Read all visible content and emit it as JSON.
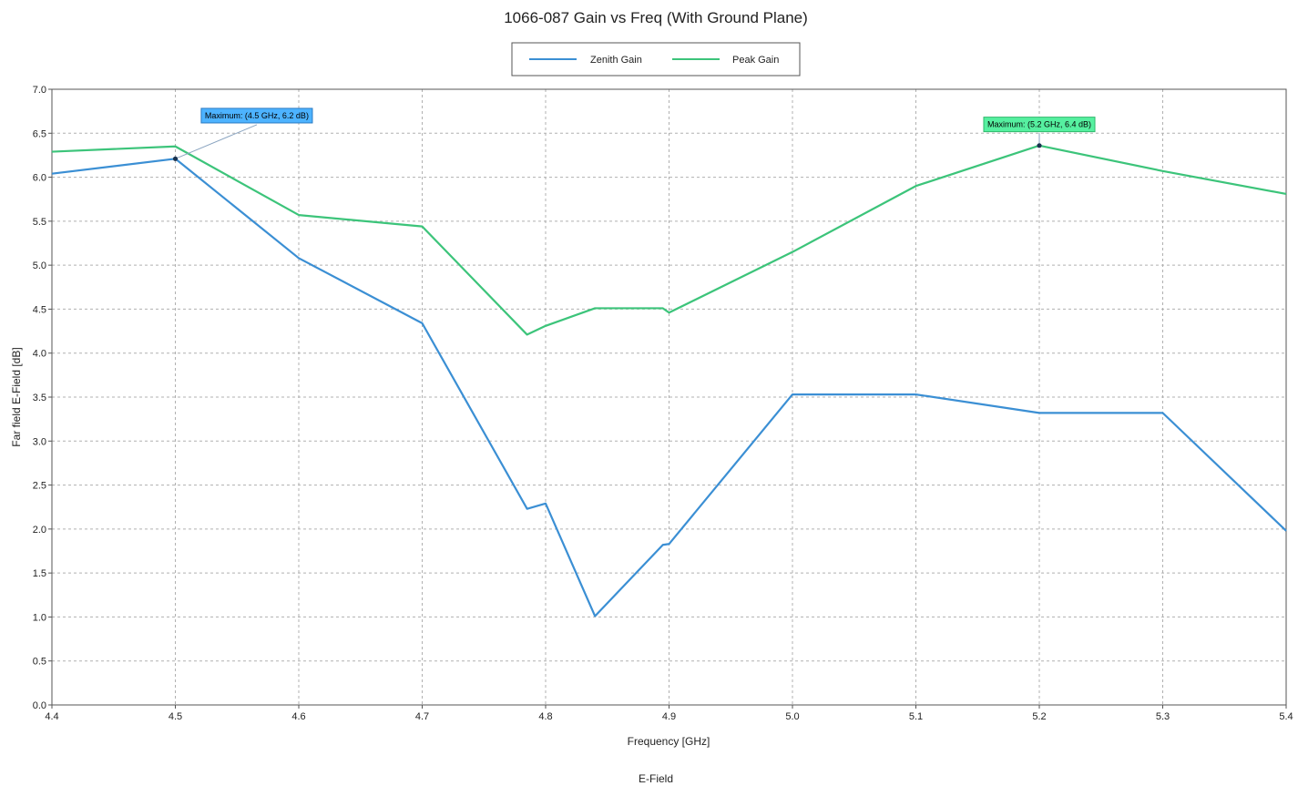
{
  "chart_data": {
    "type": "line",
    "title": "1066-087 Gain vs Freq (With Ground Plane)",
    "xlabel": "Frequency [GHz]",
    "ylabel": "Far field E-Field [dB]",
    "footer": "E-Field",
    "xlim": [
      4.4,
      5.4
    ],
    "ylim": [
      0.0,
      7.0
    ],
    "x_ticks": [
      4.4,
      4.5,
      4.6,
      4.7,
      4.8,
      4.9,
      5.0,
      5.1,
      5.2,
      5.3,
      5.4
    ],
    "x_tick_labels": [
      "4.4",
      "4.5",
      "4.6",
      "4.7",
      "4.8",
      "4.9",
      "5.0",
      "5.1",
      "5.2",
      "5.3",
      "5.4"
    ],
    "y_ticks": [
      0.0,
      0.5,
      1.0,
      1.5,
      2.0,
      2.5,
      3.0,
      3.5,
      4.0,
      4.5,
      5.0,
      5.5,
      6.0,
      6.5,
      7.0
    ],
    "y_tick_labels": [
      "0.0",
      "0.5",
      "1.0",
      "1.5",
      "2.0",
      "2.5",
      "3.0",
      "3.5",
      "4.0",
      "4.5",
      "5.0",
      "5.5",
      "6.0",
      "6.5",
      "7.0"
    ],
    "grid": true,
    "legend_position": "top-center",
    "series": [
      {
        "name": "Zenith Gain",
        "color": "#3b8fd4",
        "points": [
          [
            4.4,
            6.04
          ],
          [
            4.5,
            6.21
          ],
          [
            4.6,
            5.08
          ],
          [
            4.7,
            4.34
          ],
          [
            4.785,
            2.23
          ],
          [
            4.8,
            2.29
          ],
          [
            4.84,
            1.01
          ],
          [
            4.895,
            1.82
          ],
          [
            4.9,
            1.83
          ],
          [
            5.0,
            3.53
          ],
          [
            5.1,
            3.53
          ],
          [
            5.2,
            3.32
          ],
          [
            5.3,
            3.32
          ],
          [
            5.4,
            1.98
          ]
        ]
      },
      {
        "name": "Peak Gain",
        "color": "#3cc47a",
        "points": [
          [
            4.4,
            6.29
          ],
          [
            4.5,
            6.35
          ],
          [
            4.6,
            5.57
          ],
          [
            4.7,
            5.44
          ],
          [
            4.785,
            4.21
          ],
          [
            4.8,
            4.31
          ],
          [
            4.84,
            4.51
          ],
          [
            4.895,
            4.51
          ],
          [
            4.9,
            4.46
          ],
          [
            5.0,
            5.15
          ],
          [
            5.1,
            5.9
          ],
          [
            5.2,
            6.36
          ],
          [
            5.3,
            6.07
          ],
          [
            5.4,
            5.81
          ]
        ]
      }
    ],
    "annotations": [
      {
        "text": "Maximum: (4.5 GHz, 6.2 dB)",
        "x": 4.5,
        "y": 6.21,
        "label_x": 4.566,
        "label_y": 6.7,
        "color": "#4db3ff",
        "border": "#2a7ac2"
      },
      {
        "text": "Maximum: (5.2 GHz, 6.4 dB)",
        "x": 5.2,
        "y": 6.36,
        "label_x": 5.2,
        "label_y": 6.6,
        "color": "#56f0a0",
        "border": "#2fb86c"
      }
    ]
  }
}
